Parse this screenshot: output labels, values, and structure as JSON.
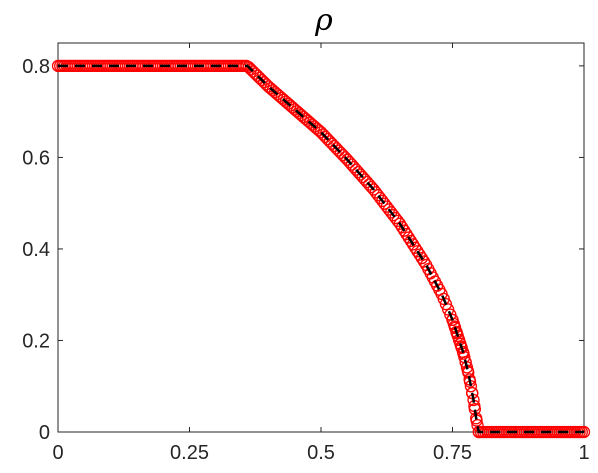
{
  "chart_data": {
    "type": "line",
    "title": "ρ",
    "xlabel": "",
    "ylabel": "",
    "xlim": [
      0,
      1
    ],
    "ylim": [
      0,
      0.85
    ],
    "xticks": [
      0,
      0.25,
      0.5,
      0.75,
      1
    ],
    "xtick_labels": [
      "0",
      "0.25",
      "0.5",
      "0.75",
      "1"
    ],
    "yticks": [
      0,
      0.2,
      0.4,
      0.6,
      0.8
    ],
    "ytick_labels": [
      "0",
      "0.2",
      "0.4",
      "0.6",
      "0.8"
    ],
    "grid": false,
    "legend": "none",
    "series": [
      {
        "style": "markers-circle",
        "color": "#ff0000",
        "x": [
          0.0,
          0.05,
          0.1,
          0.15,
          0.2,
          0.25,
          0.3,
          0.35,
          0.36,
          0.4,
          0.45,
          0.5,
          0.55,
          0.6,
          0.65,
          0.7,
          0.73,
          0.75,
          0.77,
          0.78,
          0.79,
          0.795,
          0.8,
          0.85,
          0.9,
          0.95,
          1.0
        ],
        "y": [
          0.8,
          0.8,
          0.8,
          0.8,
          0.8,
          0.8,
          0.8,
          0.8,
          0.8,
          0.755,
          0.705,
          0.655,
          0.595,
          0.53,
          0.455,
          0.365,
          0.3,
          0.245,
          0.175,
          0.13,
          0.07,
          0.03,
          0.0,
          0.0,
          0.0,
          0.0,
          0.0
        ]
      },
      {
        "style": "dashed-line",
        "color": "#000000",
        "x": [
          0.0,
          0.05,
          0.1,
          0.15,
          0.2,
          0.25,
          0.3,
          0.35,
          0.36,
          0.4,
          0.45,
          0.5,
          0.55,
          0.6,
          0.65,
          0.7,
          0.73,
          0.75,
          0.77,
          0.78,
          0.79,
          0.795,
          0.8,
          0.85,
          0.9,
          0.95,
          1.0
        ],
        "y": [
          0.8,
          0.8,
          0.8,
          0.8,
          0.8,
          0.8,
          0.8,
          0.8,
          0.8,
          0.755,
          0.705,
          0.655,
          0.595,
          0.53,
          0.455,
          0.365,
          0.3,
          0.245,
          0.175,
          0.13,
          0.07,
          0.03,
          0.0,
          0.0,
          0.0,
          0.0,
          0.0
        ]
      }
    ]
  }
}
